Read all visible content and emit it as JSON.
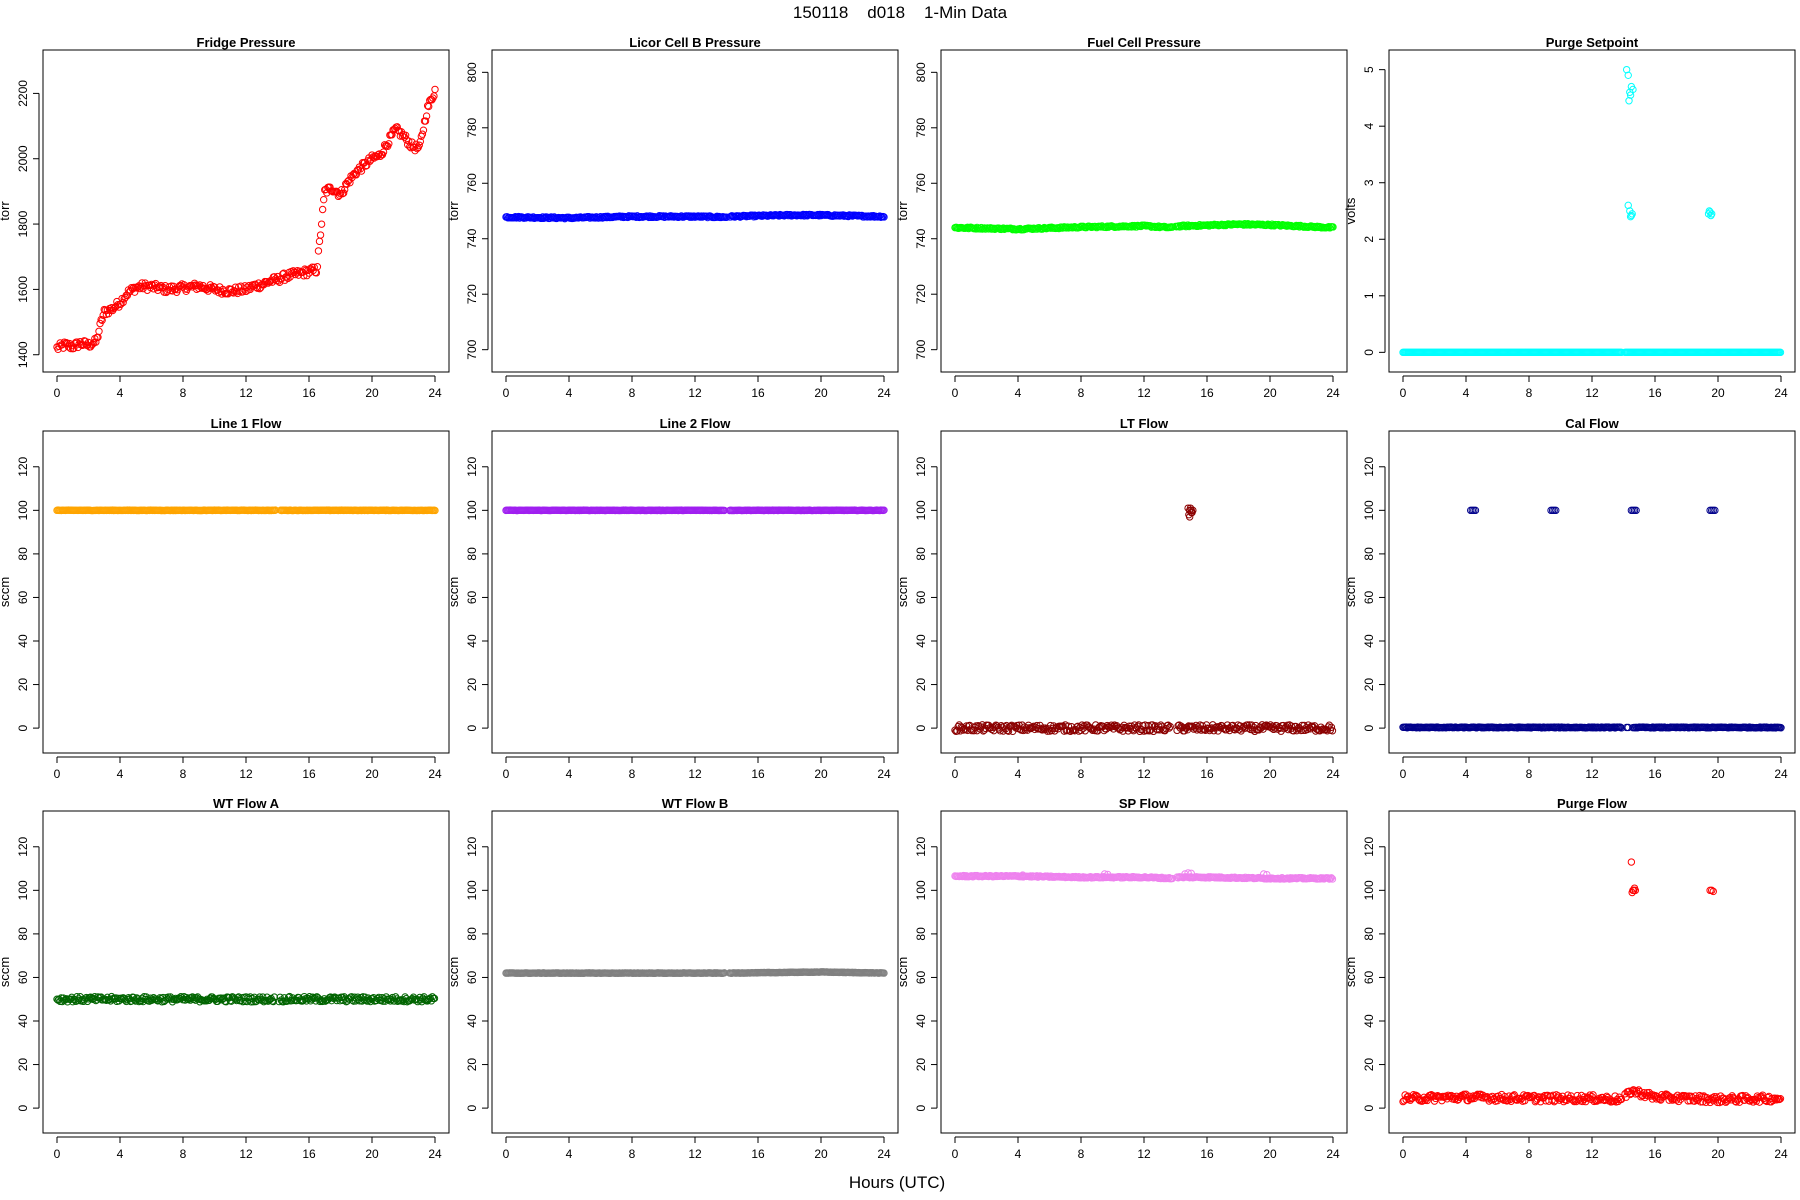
{
  "figure": {
    "title": "150118    d018    1-Min Data",
    "xlabel": "Hours (UTC)"
  },
  "chart_data": [
    {
      "type": "scatter",
      "title": "Fridge Pressure",
      "ylabel": "torr",
      "color": "#ff0000",
      "xlim": [
        0,
        24
      ],
      "ylim": [
        1390,
        2290
      ],
      "xticks": [
        0,
        4,
        8,
        12,
        16,
        20,
        24
      ],
      "yticks": [
        1400,
        1600,
        1800,
        2000,
        2200
      ],
      "segments": [
        {
          "x": [
            0,
            0.5,
            1,
            1.5,
            2,
            2.5,
            2.8,
            3,
            3.5,
            4,
            4.5,
            5,
            5.5,
            6,
            7,
            8,
            9,
            10,
            11,
            12,
            12.5,
            13,
            13.5,
            14,
            14.5,
            15,
            15.5,
            16,
            16.5,
            17,
            17.5,
            18,
            18.5,
            19,
            19.5,
            20,
            20.5,
            21,
            21.5,
            22,
            22.5,
            23,
            23.5,
            24
          ],
          "y": [
            1420,
            1430,
            1425,
            1435,
            1430,
            1440,
            1500,
            1530,
            1540,
            1560,
            1590,
            1605,
            1610,
            1608,
            1600,
            1605,
            1610,
            1600,
            1595,
            1600,
            1610,
            1615,
            1625,
            1630,
            1640,
            1645,
            1650,
            1655,
            1660,
            1900,
            1910,
            1890,
            1930,
            1960,
            1980,
            2000,
            2010,
            2050,
            2090,
            2070,
            2040,
            2030,
            2150,
            2210
          ],
          "spread": 12
        }
      ]
    },
    {
      "type": "scatter",
      "title": "Licor Cell B Pressure",
      "ylabel": "torr",
      "color": "#0000ff",
      "xlim": [
        0,
        24
      ],
      "ylim": [
        697,
        803
      ],
      "xticks": [
        0,
        4,
        8,
        12,
        16,
        20,
        24
      ],
      "yticks": [
        700,
        720,
        740,
        760,
        780,
        800
      ],
      "segments": [
        {
          "x": [
            0,
            4,
            8,
            12,
            14
          ],
          "y": [
            747.8,
            747.5,
            748,
            748,
            747.8
          ],
          "spread": 0.3
        },
        {
          "x": [
            14.2,
            18,
            20,
            24
          ],
          "y": [
            748,
            748.5,
            748.5,
            748
          ],
          "spread": 0.3
        }
      ]
    },
    {
      "type": "scatter",
      "title": "Fuel Cell Pressure",
      "ylabel": "torr",
      "color": "#00ff00",
      "xlim": [
        0,
        24
      ],
      "ylim": [
        697,
        803
      ],
      "xticks": [
        0,
        4,
        8,
        12,
        16,
        20,
        24
      ],
      "yticks": [
        700,
        720,
        740,
        760,
        780,
        800
      ],
      "segments": [
        {
          "x": [
            0,
            4,
            8,
            12,
            13.8
          ],
          "y": [
            744,
            743.5,
            744.2,
            744.6,
            744
          ],
          "spread": 0.3
        },
        {
          "x": [
            14,
            18,
            20,
            24
          ],
          "y": [
            744.5,
            745.2,
            745,
            744
          ],
          "spread": 0.3
        }
      ]
    },
    {
      "type": "scatter",
      "title": "Purge Setpoint",
      "ylabel": "volts",
      "color": "#00ffff",
      "xlim": [
        0,
        24
      ],
      "ylim": [
        -0.1,
        5.1
      ],
      "xticks": [
        0,
        4,
        8,
        12,
        16,
        20,
        24
      ],
      "yticks": [
        0,
        1,
        2,
        3,
        4,
        5
      ],
      "segments": [
        {
          "x": [
            0,
            13.9
          ],
          "y": [
            0,
            0
          ],
          "spread": 0
        },
        {
          "x": [
            14.1,
            24
          ],
          "y": [
            0,
            0
          ],
          "spread": 0
        }
      ],
      "points": {
        "x": [
          14.2,
          14.3,
          14.4,
          14.5,
          14.6,
          14.35,
          14.45,
          14.55,
          14.4,
          14.5,
          14.3,
          14.45,
          19.4,
          19.5,
          19.6,
          19.45,
          19.55
        ],
        "y": [
          5.0,
          4.9,
          4.6,
          4.7,
          4.65,
          4.45,
          4.55,
          2.45,
          2.5,
          2.42,
          2.6,
          2.4,
          2.45,
          2.48,
          2.45,
          2.5,
          2.42
        ]
      }
    },
    {
      "type": "scatter",
      "title": "Line 1 Flow",
      "ylabel": "sccm",
      "color": "#ffa500",
      "xlim": [
        0,
        24
      ],
      "ylim": [
        -5,
        130
      ],
      "xticks": [
        0,
        4,
        8,
        12,
        16,
        20,
        24
      ],
      "yticks": [
        0,
        20,
        40,
        60,
        80,
        100,
        120
      ],
      "segments": [
        {
          "x": [
            0,
            13.9
          ],
          "y": [
            100,
            100
          ],
          "spread": 0.1
        },
        {
          "x": [
            14.2,
            24
          ],
          "y": [
            100,
            100
          ],
          "spread": 0.1
        }
      ]
    },
    {
      "type": "scatter",
      "title": "Line 2 Flow",
      "ylabel": "sccm",
      "color": "#a020f0",
      "xlim": [
        0,
        24
      ],
      "ylim": [
        -5,
        130
      ],
      "xticks": [
        0,
        4,
        8,
        12,
        16,
        20,
        24
      ],
      "yticks": [
        0,
        20,
        40,
        60,
        80,
        100,
        120
      ],
      "segments": [
        {
          "x": [
            0,
            13.9
          ],
          "y": [
            100,
            100
          ],
          "spread": 0.1
        },
        {
          "x": [
            14.2,
            24
          ],
          "y": [
            100,
            100
          ],
          "spread": 0.1
        }
      ]
    },
    {
      "type": "scatter",
      "title": "LT Flow",
      "ylabel": "sccm",
      "color": "#8b0000",
      "xlim": [
        0,
        24
      ],
      "ylim": [
        -5,
        130
      ],
      "xticks": [
        0,
        4,
        8,
        12,
        16,
        20,
        24
      ],
      "yticks": [
        0,
        20,
        40,
        60,
        80,
        100,
        120
      ],
      "segments": [
        {
          "x": [
            0,
            13.7
          ],
          "y": [
            0,
            0
          ],
          "spread": 1.5
        },
        {
          "x": [
            14.1,
            24
          ],
          "y": [
            0,
            0
          ],
          "spread": 1.5
        }
      ],
      "points": {
        "x": [
          14.8,
          14.9,
          15.0,
          15.1,
          14.85,
          14.95,
          15.05,
          14.9,
          15.0
        ],
        "y": [
          101,
          100,
          99,
          100,
          98,
          101,
          99,
          97,
          100
        ]
      }
    },
    {
      "type": "scatter",
      "title": "Cal Flow",
      "ylabel": "sccm",
      "color": "#00008b",
      "xlim": [
        0,
        24
      ],
      "ylim": [
        -5,
        130
      ],
      "xticks": [
        0,
        4,
        8,
        12,
        16,
        20,
        24
      ],
      "yticks": [
        0,
        20,
        40,
        60,
        80,
        100,
        120
      ],
      "segments": [
        {
          "x": [
            0,
            13.9
          ],
          "y": [
            0.3,
            0.3
          ],
          "spread": 0.2
        },
        {
          "x": [
            14.6,
            24
          ],
          "y": [
            0.3,
            0.3
          ],
          "spread": 0.2
        }
      ],
      "points": {
        "x": [
          4.3,
          4.4,
          4.5,
          4.6,
          9.4,
          9.5,
          9.6,
          9.7,
          14.5,
          14.6,
          14.7,
          14.8,
          19.5,
          19.6,
          19.7,
          19.8,
          14.2,
          14.3
        ],
        "y": [
          100,
          100,
          100,
          100,
          100,
          100,
          100,
          100,
          100,
          100,
          100,
          100,
          100,
          100,
          100,
          100,
          0.3,
          0.3
        ]
      }
    },
    {
      "type": "scatter",
      "title": "WT Flow A",
      "ylabel": "sccm",
      "color": "#006400",
      "xlim": [
        0,
        24
      ],
      "ylim": [
        -5,
        130
      ],
      "xticks": [
        0,
        4,
        8,
        12,
        16,
        20,
        24
      ],
      "yticks": [
        0,
        20,
        40,
        60,
        80,
        100,
        120
      ],
      "segments": [
        {
          "x": [
            0,
            13.8
          ],
          "y": [
            50,
            50
          ],
          "spread": 1.2
        },
        {
          "x": [
            14.1,
            24
          ],
          "y": [
            50,
            50
          ],
          "spread": 1.2
        }
      ]
    },
    {
      "type": "scatter",
      "title": "WT Flow B",
      "ylabel": "sccm",
      "color": "#808080",
      "xlim": [
        0,
        24
      ],
      "ylim": [
        -5,
        130
      ],
      "xticks": [
        0,
        4,
        8,
        12,
        16,
        20,
        24
      ],
      "yticks": [
        0,
        20,
        40,
        60,
        80,
        100,
        120
      ],
      "segments": [
        {
          "x": [
            0,
            13.9
          ],
          "y": [
            62,
            62
          ],
          "spread": 0.1
        },
        {
          "x": [
            14.2,
            20,
            24
          ],
          "y": [
            62,
            62.5,
            62
          ],
          "spread": 0.1
        }
      ]
    },
    {
      "type": "scatter",
      "title": "SP Flow",
      "ylabel": "sccm",
      "color": "#ee82ee",
      "xlim": [
        0,
        24
      ],
      "ylim": [
        -5,
        130
      ],
      "xticks": [
        0,
        4,
        8,
        12,
        16,
        20,
        24
      ],
      "yticks": [
        0,
        20,
        40,
        60,
        80,
        100,
        120
      ],
      "segments": [
        {
          "x": [
            0,
            4,
            8,
            12,
            13.8
          ],
          "y": [
            106.5,
            106.5,
            106,
            106,
            105.5
          ],
          "spread": 0.3
        },
        {
          "x": [
            14.1,
            16,
            20,
            24
          ],
          "y": [
            106,
            106,
            105.5,
            105.5
          ],
          "spread": 0.3
        }
      ],
      "points": {
        "x": [
          4.3,
          9.5,
          9.7,
          14.6,
          14.8,
          15.0,
          19.6,
          19.8
        ],
        "y": [
          107,
          107.5,
          107.3,
          107.5,
          108,
          107.8,
          107.5,
          107.2
        ]
      }
    },
    {
      "type": "scatter",
      "title": "Purge Flow",
      "ylabel": "sccm",
      "color": "#ff0000",
      "xlim": [
        0,
        24
      ],
      "ylim": [
        -5,
        130
      ],
      "xticks": [
        0,
        4,
        8,
        12,
        16,
        20,
        24
      ],
      "yticks": [
        0,
        20,
        40,
        60,
        80,
        100,
        120
      ],
      "segments": [
        {
          "x": [
            0,
            4,
            8,
            12,
            13.9
          ],
          "y": [
            4.5,
            5,
            4.5,
            4.5,
            4
          ],
          "spread": 1.6
        },
        {
          "x": [
            14.1,
            14.5,
            15,
            16,
            20,
            24
          ],
          "y": [
            5,
            8,
            7,
            5,
            4,
            4.5
          ],
          "spread": 1.6
        }
      ],
      "points": {
        "x": [
          14.5,
          14.6,
          14.7,
          14.55,
          14.65,
          14.75,
          19.5,
          19.6,
          19.7
        ],
        "y": [
          113,
          100,
          101,
          99,
          100,
          100,
          100,
          100,
          99.5
        ]
      }
    }
  ]
}
